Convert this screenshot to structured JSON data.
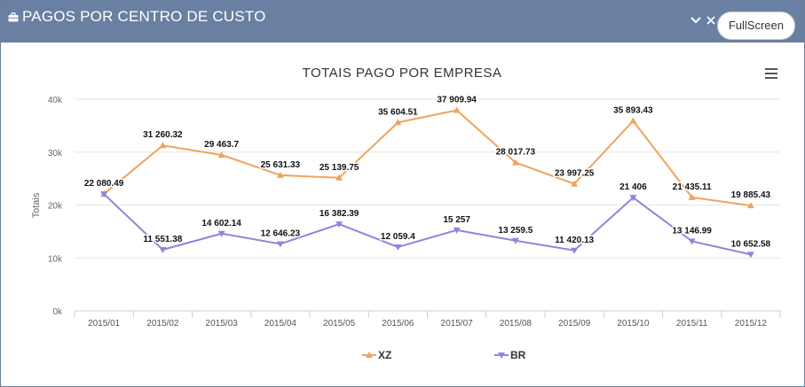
{
  "header": {
    "title": "PAGOS POR CENTRO DE CUSTO",
    "fullscreen_label": "FullScreen",
    "collapse_icon": "chevron-down-icon",
    "close_icon": "close-icon",
    "title_icon": "briefcase-icon"
  },
  "chart_data": {
    "type": "line",
    "title": "TOTAIS PAGO POR EMPRESA",
    "ylabel": "Totais",
    "xlabel": "",
    "ylim": [
      0,
      40000
    ],
    "yticks": [
      "0k",
      "10k",
      "20k",
      "30k",
      "40k"
    ],
    "ytick_values": [
      0,
      10000,
      20000,
      30000,
      40000
    ],
    "categories": [
      "2015/01",
      "2015/02",
      "2015/03",
      "2015/04",
      "2015/05",
      "2015/06",
      "2015/07",
      "2015/08",
      "2015/09",
      "2015/10",
      "2015/11",
      "2015/12"
    ],
    "series": [
      {
        "name": "XZ",
        "color": "#f0a35b",
        "marker": "triangle",
        "values": [
          22080.49,
          31260.32,
          29463.7,
          25631.33,
          25139.75,
          35604.51,
          37909.94,
          28017.73,
          23997.25,
          35893.43,
          21435.11,
          19885.43
        ],
        "labels": [
          "22 080.49",
          "31 260.32",
          "29 463.7",
          "25 631.33",
          "25 139.75",
          "35 604.51",
          "37 909.94",
          "28 017.73",
          "23 997.25",
          "35 893.43",
          "21 435.11",
          "19 885.43"
        ]
      },
      {
        "name": "BR",
        "color": "#8a87dc",
        "marker": "triangle-down",
        "values": [
          22080.49,
          11551.38,
          14602.14,
          12646.23,
          16382.39,
          12059.4,
          15257,
          13259.5,
          11420.13,
          21406,
          13146.99,
          10652.58
        ],
        "labels": [
          "",
          "11 551.38",
          "14 602.14",
          "12 646.23",
          "16 382.39",
          "12 059.4",
          "15 257",
          "13 259.5",
          "11 420.13",
          "21 406",
          "13 146.99",
          "10 652.58"
        ]
      }
    ],
    "grid": true,
    "legend": "bottom-center",
    "menu_icon": "hamburger-menu-icon"
  }
}
